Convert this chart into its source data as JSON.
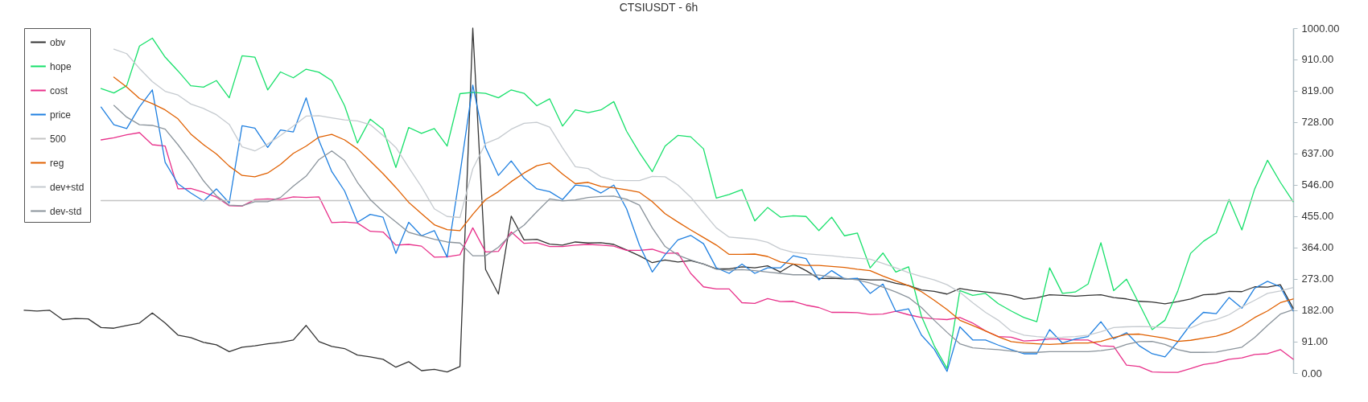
{
  "chart_data": {
    "type": "line",
    "title": "CTSIUSDT - 6h",
    "categories": [
      null,
      null,
      null,
      null,
      null,
      null,
      null,
      null,
      null,
      null,
      null,
      null,
      null,
      null,
      null,
      null,
      null,
      null,
      null,
      null,
      null,
      null,
      null,
      null,
      null,
      null,
      null,
      null,
      null,
      null,
      null,
      null,
      null,
      null,
      null,
      null,
      null,
      null,
      null,
      null,
      null,
      null,
      null,
      null,
      null,
      null,
      null,
      null,
      null,
      null,
      null,
      null,
      null,
      null,
      null,
      null,
      null,
      null,
      null,
      null,
      null,
      null,
      null,
      null,
      null,
      null,
      null,
      null,
      null,
      null,
      null,
      null,
      null,
      null,
      null,
      null,
      null,
      null,
      null,
      null,
      null,
      null,
      null,
      null,
      null,
      null,
      null,
      null,
      null,
      null,
      null,
      null,
      null,
      null,
      null,
      null,
      null,
      null,
      null,
      null
    ],
    "series": [
      {
        "name": "obv",
        "color": "#333333",
        "values": [
          182,
          180,
          182,
          155,
          158,
          157,
          132,
          130,
          138,
          145,
          174,
          145,
          110,
          103,
          89,
          82,
          62,
          75,
          79,
          85,
          89,
          96,
          138,
          91,
          77,
          71,
          52,
          47,
          40,
          17,
          33,
          7,
          11,
          3,
          19,
          1000,
          300,
          229,
          455,
          386,
          388,
          374,
          371,
          380,
          377,
          378,
          373,
          357,
          340,
          320,
          328,
          322,
          326,
          316,
          302,
          302,
          308,
          305,
          311,
          293,
          316,
          297,
          274,
          275,
          273,
          273,
          270,
          270,
          260,
          254,
          241,
          237,
          229,
          245,
          239,
          235,
          231,
          225,
          214,
          218,
          227,
          225,
          223,
          225,
          227,
          219,
          215,
          208,
          206,
          201,
          207,
          215,
          227,
          229,
          237,
          236,
          250,
          249,
          256,
          188
        ]
      },
      {
        "name": "hope",
        "color": "#17e06a",
        "values": [
          null,
          null,
          null,
          null,
          null,
          null,
          825,
          812,
          833,
          948,
          971,
          916,
          876,
          833,
          829,
          848,
          798,
          920,
          916,
          821,
          873,
          856,
          881,
          872,
          848,
          775,
          667,
          736,
          707,
          596,
          712,
          695,
          709,
          658,
          810,
          814,
          811,
          798,
          821,
          811,
          775,
          795,
          716,
          763,
          755,
          763,
          787,
          701,
          639,
          584,
          658,
          689,
          685,
          650,
          507,
          518,
          532,
          441,
          480,
          452,
          456,
          454,
          413,
          452,
          398,
          406,
          305,
          348,
          293,
          308,
          165,
          79,
          13,
          239,
          225,
          231,
          201,
          180,
          161,
          149,
          305,
          231,
          235,
          258,
          378,
          239,
          272,
          200,
          126,
          153,
          238,
          347,
          382,
          406,
          503,
          415,
          534,
          617,
          553,
          497
        ]
      },
      {
        "name": "cost",
        "color": "#e8308a",
        "values": [
          null,
          null,
          null,
          null,
          null,
          null,
          676,
          682,
          691,
          697,
          662,
          658,
          534,
          535,
          524,
          510,
          485,
          484,
          503,
          505,
          503,
          511,
          509,
          511,
          436,
          438,
          435,
          411,
          409,
          371,
          373,
          368,
          336,
          337,
          343,
          421,
          351,
          353,
          409,
          376,
          378,
          367,
          367,
          371,
          373,
          371,
          368,
          356,
          356,
          359,
          347,
          348,
          289,
          250,
          244,
          244,
          204,
          202,
          216,
          207,
          208,
          197,
          190,
          176,
          176,
          175,
          170,
          171,
          179,
          169,
          161,
          157,
          155,
          161,
          145,
          122,
          106,
          104,
          93,
          95,
          99,
          99,
          96,
          96,
          79,
          77,
          23,
          19,
          3,
          2,
          2,
          13,
          25,
          30,
          40,
          44,
          54,
          56,
          68,
          40
        ]
      },
      {
        "name": "price",
        "color": "#1e7fe0",
        "values": [
          null,
          null,
          null,
          null,
          null,
          null,
          771,
          720,
          709,
          772,
          821,
          611,
          549,
          522,
          499,
          534,
          493,
          717,
          710,
          654,
          705,
          699,
          798,
          674,
          584,
          528,
          437,
          460,
          452,
          347,
          437,
          398,
          413,
          336,
          577,
          835,
          654,
          573,
          615,
          565,
          534,
          526,
          503,
          545,
          541,
          522,
          545,
          476,
          371,
          293,
          343,
          386,
          399,
          375,
          305,
          289,
          316,
          289,
          305,
          305,
          340,
          332,
          270,
          297,
          273,
          275,
          231,
          258,
          179,
          186,
          110,
          69,
          5,
          134,
          96,
          96,
          81,
          68,
          56,
          56,
          126,
          87,
          99,
          106,
          149,
          99,
          117,
          79,
          56,
          47,
          91,
          141,
          176,
          172,
          219,
          188,
          246,
          266,
          250,
          180
        ]
      },
      {
        "name": "500",
        "color": "#c4c4c4",
        "values": [
          null,
          null,
          null,
          null,
          null,
          null,
          500,
          500,
          500,
          500,
          500,
          500,
          500,
          500,
          500,
          500,
          500,
          500,
          500,
          500,
          500,
          500,
          500,
          500,
          500,
          500,
          500,
          500,
          500,
          500,
          500,
          500,
          500,
          500,
          500,
          500,
          500,
          500,
          500,
          500,
          500,
          500,
          500,
          500,
          500,
          500,
          500,
          500,
          500,
          500,
          500,
          500,
          500,
          500,
          500,
          500,
          500,
          500,
          500,
          500,
          500,
          500,
          500,
          500,
          500,
          500,
          500,
          500,
          500,
          500,
          500,
          500,
          500,
          500,
          500,
          500,
          500,
          500,
          500,
          500,
          500,
          500,
          500,
          500,
          500,
          500,
          500,
          500,
          500,
          500,
          500,
          500,
          500,
          500,
          500,
          500,
          500,
          500,
          500,
          500
        ]
      },
      {
        "name": "reg",
        "color": "#e06000",
        "values": [
          null,
          null,
          null,
          null,
          null,
          null,
          null,
          858,
          829,
          796,
          781,
          763,
          737,
          693,
          662,
          635,
          600,
          573,
          569,
          580,
          605,
          637,
          658,
          684,
          692,
          676,
          650,
          615,
          578,
          538,
          495,
          462,
          430,
          416,
          413,
          460,
          503,
          526,
          555,
          580,
          601,
          609,
          577,
          549,
          553,
          541,
          537,
          531,
          524,
          497,
          462,
          438,
          415,
          393,
          371,
          344,
          344,
          345,
          338,
          322,
          316,
          312,
          312,
          309,
          306,
          301,
          297,
          281,
          267,
          253,
          236,
          211,
          184,
          153,
          138,
          122,
          105,
          91,
          87,
          85,
          83,
          85,
          87,
          87,
          92,
          103,
          112,
          113,
          107,
          101,
          92,
          95,
          101,
          107,
          118,
          137,
          161,
          180,
          204,
          215
        ]
      },
      {
        "name": "dev+std",
        "color": "#c5cacf",
        "values": [
          null,
          null,
          null,
          null,
          null,
          null,
          null,
          939,
          926,
          883,
          845,
          817,
          806,
          780,
          767,
          749,
          721,
          656,
          644,
          664,
          689,
          716,
          745,
          746,
          740,
          734,
          731,
          720,
          689,
          654,
          596,
          540,
          476,
          454,
          451,
          592,
          666,
          681,
          707,
          724,
          727,
          713,
          653,
          598,
          593,
          569,
          559,
          558,
          558,
          570,
          569,
          545,
          510,
          465,
          421,
          394,
          391,
          388,
          379,
          360,
          350,
          346,
          343,
          340,
          336,
          333,
          330,
          318,
          305,
          291,
          280,
          270,
          256,
          234,
          204,
          176,
          153,
          122,
          110,
          106,
          103,
          104,
          106,
          110,
          120,
          132,
          134,
          135,
          134,
          132,
          130,
          131,
          147,
          155,
          169,
          192,
          211,
          231,
          238,
          248
        ]
      },
      {
        "name": "dev-std",
        "color": "#8a939b",
        "values": [
          null,
          null,
          null,
          null,
          null,
          null,
          null,
          776,
          742,
          720,
          718,
          707,
          662,
          612,
          557,
          514,
          487,
          485,
          497,
          497,
          509,
          542,
          571,
          619,
          644,
          616,
          553,
          503,
          468,
          438,
          408,
          398,
          388,
          380,
          377,
          340,
          340,
          365,
          402,
          429,
          468,
          505,
          499,
          502,
          509,
          512,
          513,
          504,
          487,
          421,
          367,
          342,
          328,
          316,
          301,
          298,
          300,
          297,
          293,
          289,
          285,
          285,
          284,
          279,
          275,
          270,
          261,
          249,
          235,
          219,
          190,
          153,
          118,
          85,
          73,
          70,
          68,
          64,
          60,
          60,
          62,
          62,
          62,
          62,
          65,
          70,
          83,
          91,
          92,
          83,
          68,
          60,
          60,
          61,
          68,
          75,
          103,
          138,
          171,
          184
        ]
      }
    ],
    "ylim": [
      0,
      1000
    ],
    "yticks": [
      {
        "value": 0,
        "label": "0.00"
      },
      {
        "value": 91,
        "label": "91.00"
      },
      {
        "value": 182,
        "label": "182.00"
      },
      {
        "value": 273,
        "label": "273.00"
      },
      {
        "value": 364,
        "label": "364.00"
      },
      {
        "value": 455,
        "label": "455.00"
      },
      {
        "value": 546,
        "label": "546.00"
      },
      {
        "value": 637,
        "label": "637.00"
      },
      {
        "value": 728,
        "label": "728.00"
      },
      {
        "value": 819,
        "label": "819.00"
      },
      {
        "value": 910,
        "label": "910.00"
      },
      {
        "value": 1000,
        "label": "1000.00"
      }
    ],
    "legend": "top left",
    "tick_labels": "y"
  }
}
